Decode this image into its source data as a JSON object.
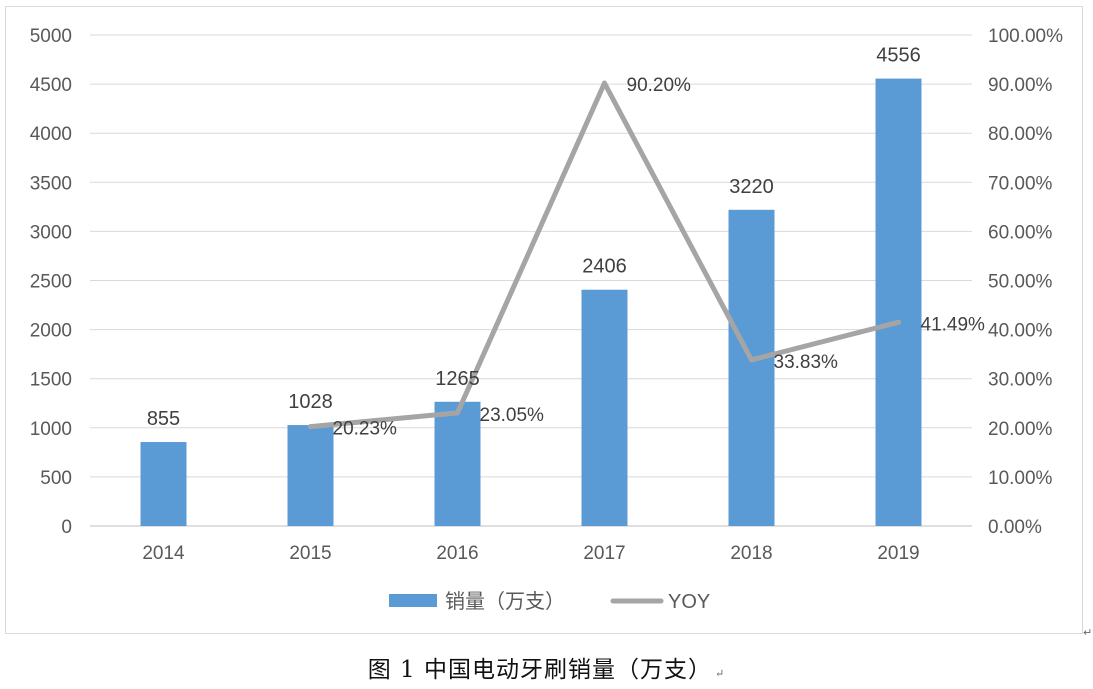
{
  "chart_data": {
    "type": "bar",
    "categories": [
      "2014",
      "2015",
      "2016",
      "2017",
      "2018",
      "2019"
    ],
    "series": [
      {
        "name": "销量（万支）",
        "type": "bar",
        "axis": "left",
        "color": "#5b9bd5",
        "values": [
          855,
          1028,
          1265,
          2406,
          3220,
          4556
        ],
        "labels": [
          "855",
          "1028",
          "1265",
          "2406",
          "3220",
          "4556"
        ]
      },
      {
        "name": "YOY",
        "type": "line",
        "axis": "right",
        "color": "#a5a5a5",
        "values": [
          null,
          20.23,
          23.05,
          90.2,
          33.83,
          41.49
        ],
        "labels": [
          "",
          "20.23%",
          "23.05%",
          "90.20%",
          "33.83%",
          "41.49%"
        ]
      }
    ],
    "y_left": {
      "min": 0,
      "max": 5000,
      "ticks": [
        "0",
        "500",
        "1000",
        "1500",
        "2000",
        "2500",
        "3000",
        "3500",
        "4000",
        "4500",
        "5000"
      ]
    },
    "y_right": {
      "min": 0,
      "max": 100,
      "ticks": [
        "0.00%",
        "10.00%",
        "20.00%",
        "30.00%",
        "40.00%",
        "50.00%",
        "60.00%",
        "70.00%",
        "80.00%",
        "90.00%",
        "100.00%"
      ]
    },
    "grid": true,
    "legend": "bottom"
  },
  "caption": "图 1 中国电动牙刷销量（万支）",
  "return_mark": "↵"
}
